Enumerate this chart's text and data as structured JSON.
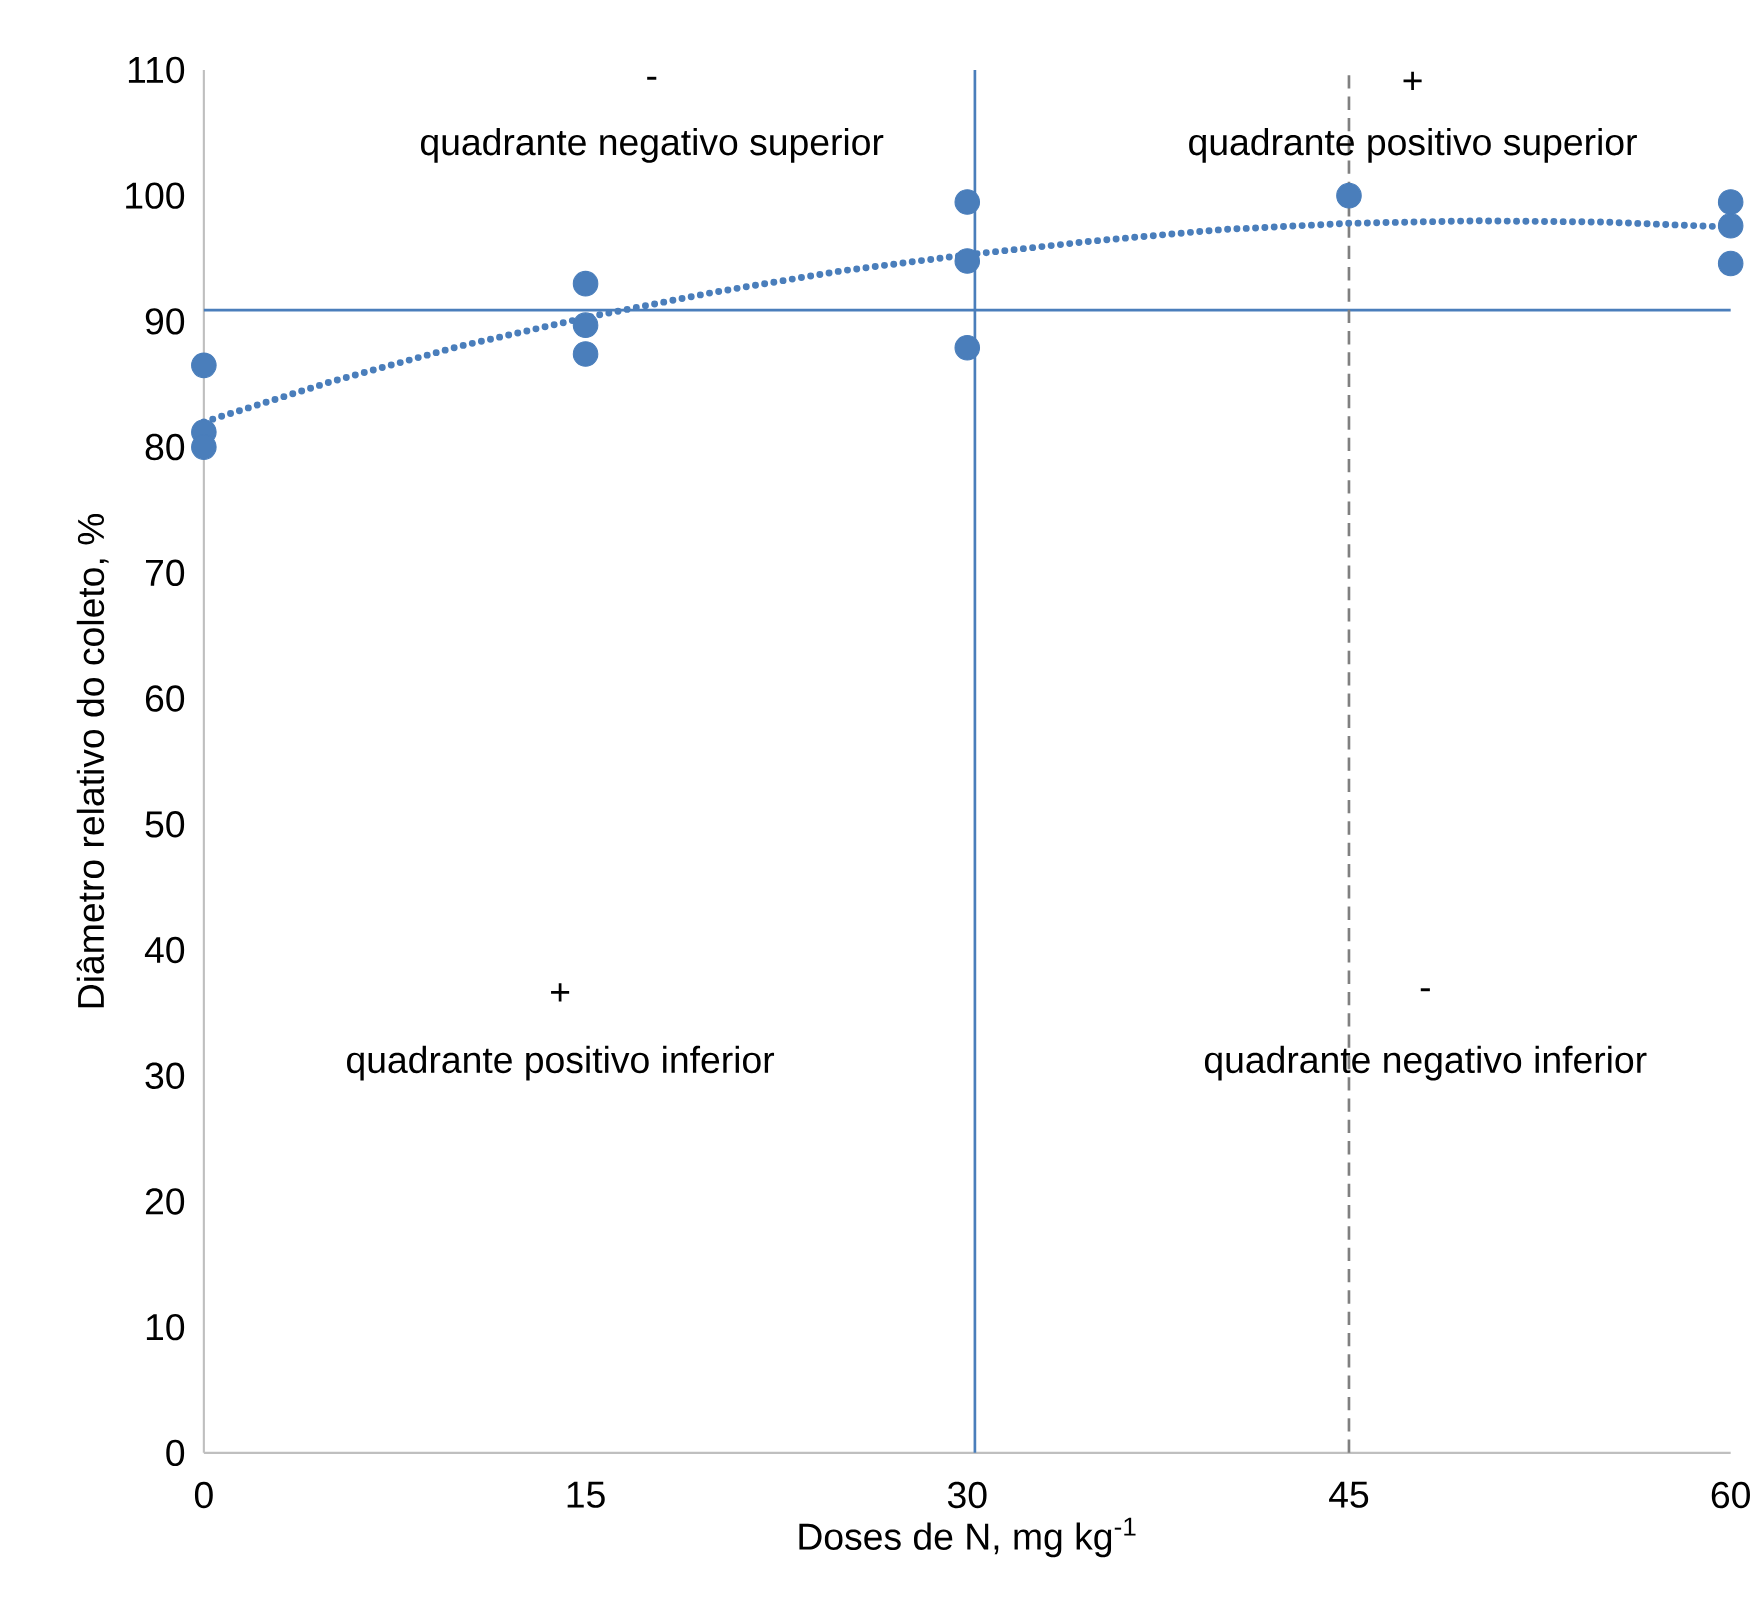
{
  "chart_data": {
    "type": "scatter",
    "xlabel": "Doses de N, mg kg$^{-1}$",
    "ylabel": "Diâmetro relativo do coleto, %",
    "xlim": [
      0,
      60
    ],
    "ylim": [
      0,
      110
    ],
    "xticks": [
      0,
      15,
      30,
      45,
      60
    ],
    "yticks": [
      0,
      10,
      20,
      30,
      40,
      50,
      60,
      70,
      80,
      90,
      100,
      110
    ],
    "series": [
      {
        "color": "#4a7ebb",
        "marker": "circle",
        "x": [
          0,
          0,
          0,
          15,
          15,
          15,
          30,
          30,
          30,
          45,
          60,
          60,
          60
        ],
        "values": [
          86.5,
          81.2,
          80.0,
          93.0,
          89.7,
          87.4,
          99.5,
          94.8,
          87.9,
          100,
          99.5,
          97.6,
          94.6
        ]
      },
      {
        "type": "line",
        "color": "#4a7ebb",
        "line_style": "dotted",
        "marker": "none",
        "x": [
          0,
          5,
          10,
          15,
          20,
          25,
          30,
          35,
          40,
          45,
          50,
          55,
          60
        ],
        "values": [
          82,
          85.2,
          88,
          90.3,
          92.3,
          94,
          95.3,
          96.4,
          97.3,
          97.8,
          98,
          97.9,
          97.5
        ]
      }
    ],
    "ref_lines": [
      {
        "axis": "y",
        "value": 90.9,
        "color": "#4a7ebb",
        "line_style": "solid"
      },
      {
        "axis": "x",
        "value": 30.3,
        "color": "#4a7ebb",
        "line_style": "solid"
      },
      {
        "axis": "x",
        "value": 45,
        "color": "#808080",
        "line_style": "dashed"
      }
    ],
    "annotations": [
      "-",
      "quadrante negativo superior",
      "+",
      "quadrante positivo superior",
      "+",
      "quadrante positivo inferior",
      "-",
      "quadrante negativo inferior"
    ]
  }
}
